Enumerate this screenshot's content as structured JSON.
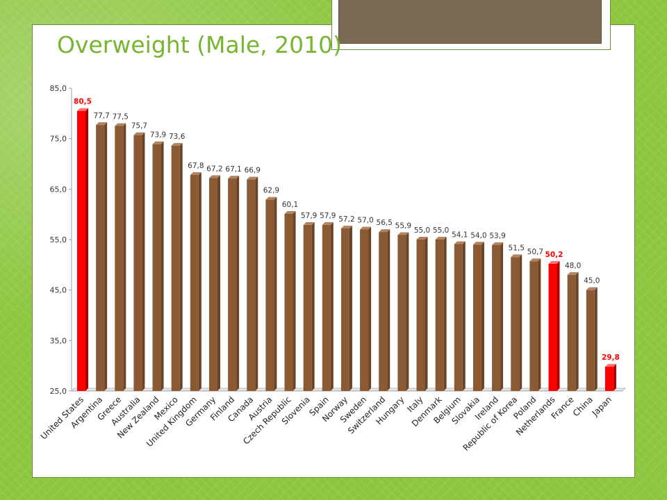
{
  "slide": {
    "title": "Overweight (Male, 2010)"
  },
  "colors": {
    "bar": "#8a5a35",
    "bar_side": "#6b4326",
    "bar_top": "#b08462",
    "highlight": "#ff0000",
    "highlight_side": "#b00000",
    "highlight_top": "#ff7070",
    "title": "#76b531",
    "background_green": "#8cc63e"
  },
  "chart_data": {
    "type": "bar",
    "title": "",
    "xlabel": "",
    "ylabel": "",
    "ylim": [
      25,
      85
    ],
    "yticks": [
      "25,0",
      "35,0",
      "45,0",
      "55,0",
      "65,0",
      "75,0",
      "85,0"
    ],
    "ytick_values": [
      25,
      35,
      45,
      55,
      65,
      75,
      85
    ],
    "categories": [
      "United States",
      "Argentina",
      "Greece",
      "Australia",
      "New Zealand",
      "Mexico",
      "United Kingdom",
      "Germany",
      "Finland",
      "Canada",
      "Austria",
      "Czech Republic",
      "Slovenia",
      "Spain",
      "Norway",
      "Sweden",
      "Switzerland",
      "Hungary",
      "Italy",
      "Denmark",
      "Belgium",
      "Slovakia",
      "Ireland",
      "Republic of Korea",
      "Poland",
      "Netherlands",
      "France",
      "China",
      "Japan"
    ],
    "values": [
      80.5,
      77.7,
      77.5,
      75.7,
      73.9,
      73.6,
      67.8,
      67.2,
      67.1,
      66.9,
      62.9,
      60.1,
      57.9,
      57.9,
      57.2,
      57.0,
      56.5,
      55.9,
      55.0,
      55.0,
      54.1,
      54.0,
      53.9,
      51.5,
      50.7,
      50.2,
      48.0,
      45.0,
      29.8
    ],
    "labels": [
      "80,5",
      "77,7",
      "77,5",
      "75,7",
      "73,9",
      "73,6",
      "67,8",
      "67,2",
      "67,1",
      "66,9",
      "62,9",
      "60,1",
      "57,9",
      "57,9",
      "57,2",
      "57,0",
      "56,5",
      "55,9",
      "55,0",
      "55,0",
      "54,1",
      "54,0",
      "53,9",
      "51,5",
      "50,7",
      "50,2",
      "48,0",
      "45,0",
      "29,8"
    ],
    "highlighted": [
      "United States",
      "Netherlands",
      "Japan"
    ],
    "grid": false,
    "legend": "none"
  }
}
